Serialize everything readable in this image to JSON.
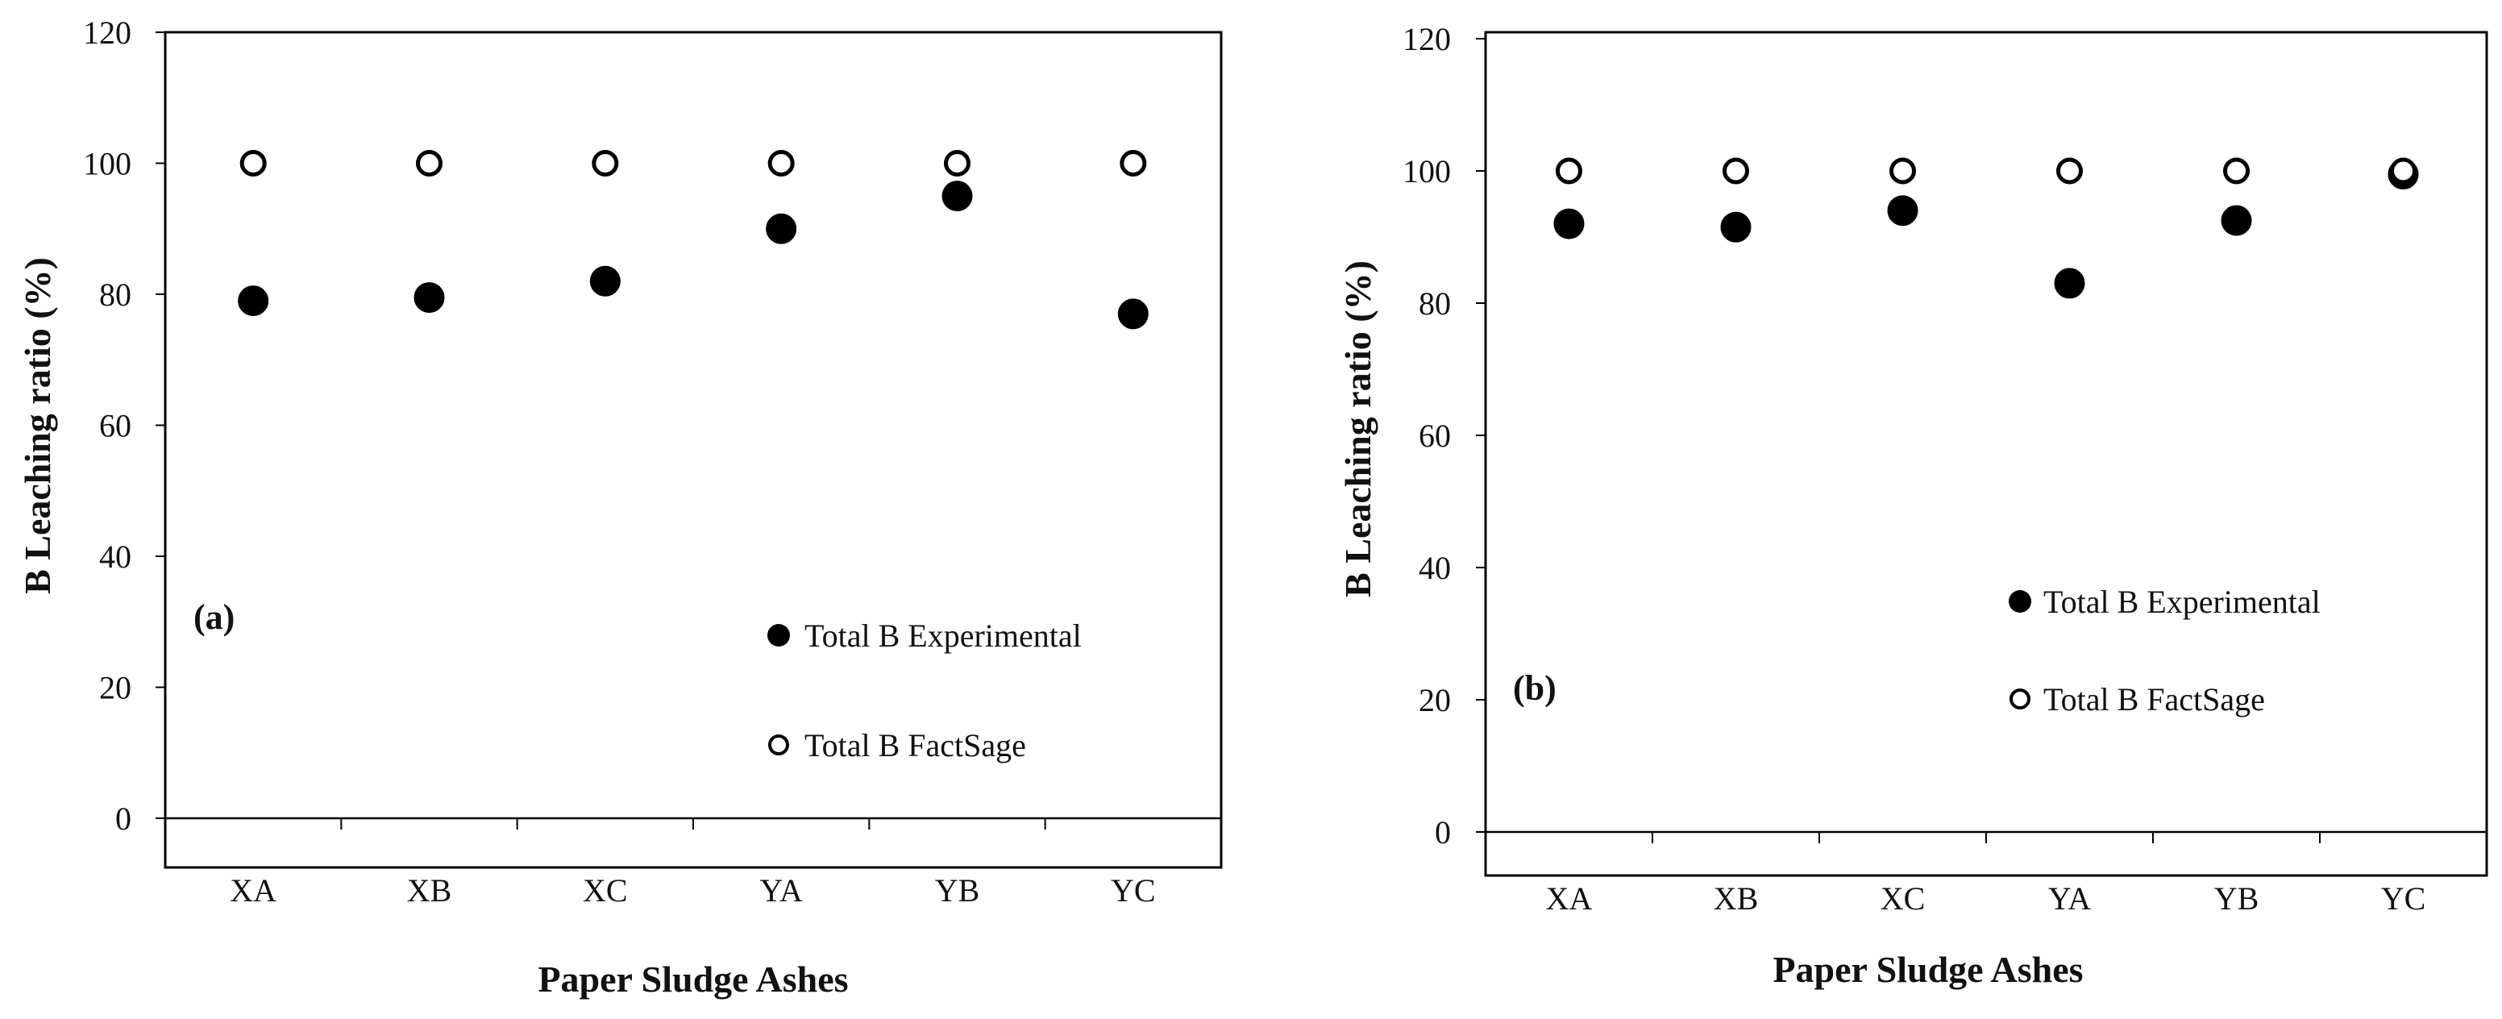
{
  "chart_data": [
    {
      "type": "scatter",
      "panel_label": "(a)",
      "categories": [
        "XA",
        "XB",
        "XC",
        "YA",
        "YB",
        "YC"
      ],
      "xlabel": "Paper Sludge Ashes",
      "ylabel": "B Leaching ratio (%)",
      "ylim": [
        0,
        120
      ],
      "yticks": [
        "0",
        "20",
        "40",
        "60",
        "80",
        "100",
        "120"
      ],
      "grid": false,
      "legend_position": "bottom-right",
      "series": [
        {
          "name": "Total B Experimental",
          "marker": "filled-circle",
          "color": "#000000",
          "values": [
            79,
            79.5,
            82,
            90,
            95,
            77
          ]
        },
        {
          "name": "Total B FactSage",
          "marker": "open-circle",
          "color": "#000000",
          "values": [
            100,
            100,
            100,
            100,
            100,
            100
          ]
        }
      ]
    },
    {
      "type": "scatter",
      "panel_label": "(b)",
      "categories": [
        "XA",
        "XB",
        "XC",
        "YA",
        "YB",
        "YC"
      ],
      "xlabel": "Paper Sludge Ashes",
      "ylabel": "B Leaching ratio (%)",
      "ylim": [
        0,
        120
      ],
      "yticks": [
        "0",
        "20",
        "40",
        "60",
        "80",
        "100",
        "120"
      ],
      "grid": false,
      "legend_position": "center-right",
      "series": [
        {
          "name": "Total B Experimental",
          "marker": "filled-circle",
          "color": "#000000",
          "values": [
            92,
            91.5,
            94,
            83,
            92.5,
            99.5
          ]
        },
        {
          "name": "Total B FactSage",
          "marker": "open-circle",
          "color": "#000000",
          "values": [
            100,
            100,
            100,
            100,
            100,
            100
          ]
        }
      ]
    }
  ]
}
